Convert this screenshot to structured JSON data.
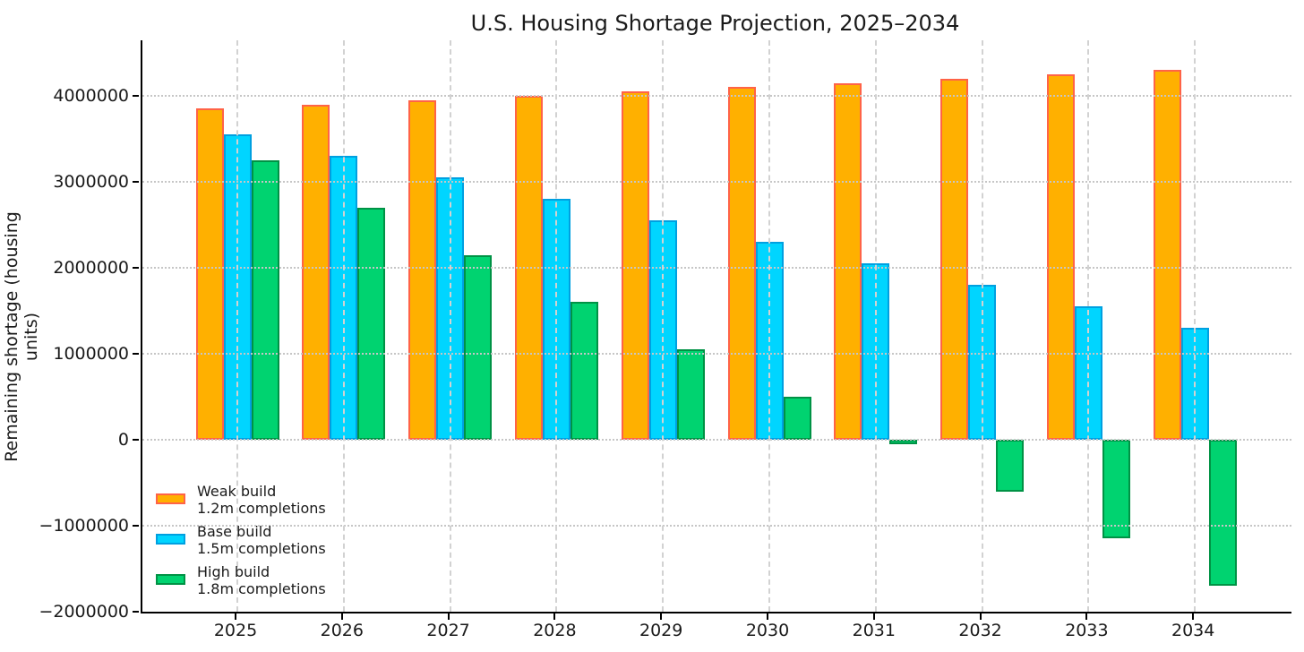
{
  "title": "U.S. Housing Shortage Projection, 2025–2034",
  "chart_data": {
    "type": "bar",
    "title": "U.S. Housing Shortage Projection, 2025–2034",
    "xlabel": "",
    "ylabel": "Remaining shortage (housing units)",
    "categories": [
      "2025",
      "2026",
      "2027",
      "2028",
      "2029",
      "2030",
      "2031",
      "2032",
      "2033",
      "2034"
    ],
    "series": [
      {
        "name": "Weak build",
        "sublabel": "1.2m completions",
        "color": "#FFB000",
        "edge_color": "#FF6347",
        "values": [
          3850000,
          3900000,
          3950000,
          4000000,
          4050000,
          4100000,
          4150000,
          4200000,
          4250000,
          4300000
        ]
      },
      {
        "name": "Base build",
        "sublabel": "1.5m completions",
        "color": "#00D5FF",
        "edge_color": "#00A0E0",
        "values": [
          3550000,
          3300000,
          3050000,
          2800000,
          2550000,
          2300000,
          2050000,
          1800000,
          1550000,
          1300000
        ]
      },
      {
        "name": "High build",
        "sublabel": "1.8m completions",
        "color": "#00D370",
        "edge_color": "#009245",
        "values": [
          3250000,
          2700000,
          2150000,
          1600000,
          1050000,
          500000,
          -50000,
          -600000,
          -1150000,
          -1700000
        ]
      }
    ],
    "ylim": [
      -2000000,
      4646000
    ],
    "yticks": [
      4000000,
      3000000,
      2000000,
      1000000,
      0,
      -1000000,
      -2000000
    ],
    "ytick_labels": [
      "4000000",
      "3000000",
      "2000000",
      "1000000",
      "0",
      "−1000000",
      "−2000000"
    ],
    "grid": {
      "horizontal": "dotted",
      "vertical": "dashed",
      "color": "#c9c9c9",
      "drawn_above_bars": true
    },
    "legend": {
      "position": "lower left",
      "frame": false
    }
  }
}
